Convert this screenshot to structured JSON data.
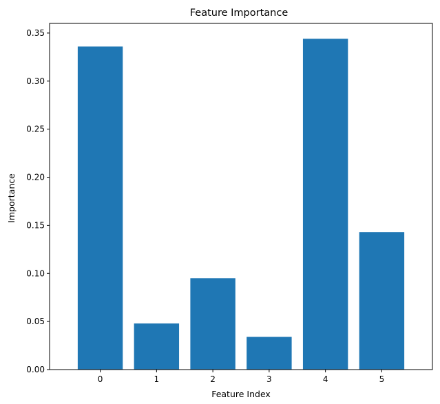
{
  "chart_data": {
    "type": "bar",
    "title": "Feature Importance",
    "xlabel": "Feature Index",
    "ylabel": "Importance",
    "categories": [
      "0",
      "1",
      "2",
      "3",
      "4",
      "5"
    ],
    "values": [
      0.336,
      0.048,
      0.095,
      0.034,
      0.344,
      0.143
    ],
    "ylim": [
      0,
      0.36
    ],
    "yticks": [
      0.0,
      0.05,
      0.1,
      0.15,
      0.2,
      0.25,
      0.3,
      0.35
    ],
    "ytick_labels": [
      "0.00",
      "0.05",
      "0.10",
      "0.15",
      "0.20",
      "0.25",
      "0.30",
      "0.35"
    ],
    "bar_color": "#1f77b4",
    "grid": false,
    "legend": "none"
  }
}
